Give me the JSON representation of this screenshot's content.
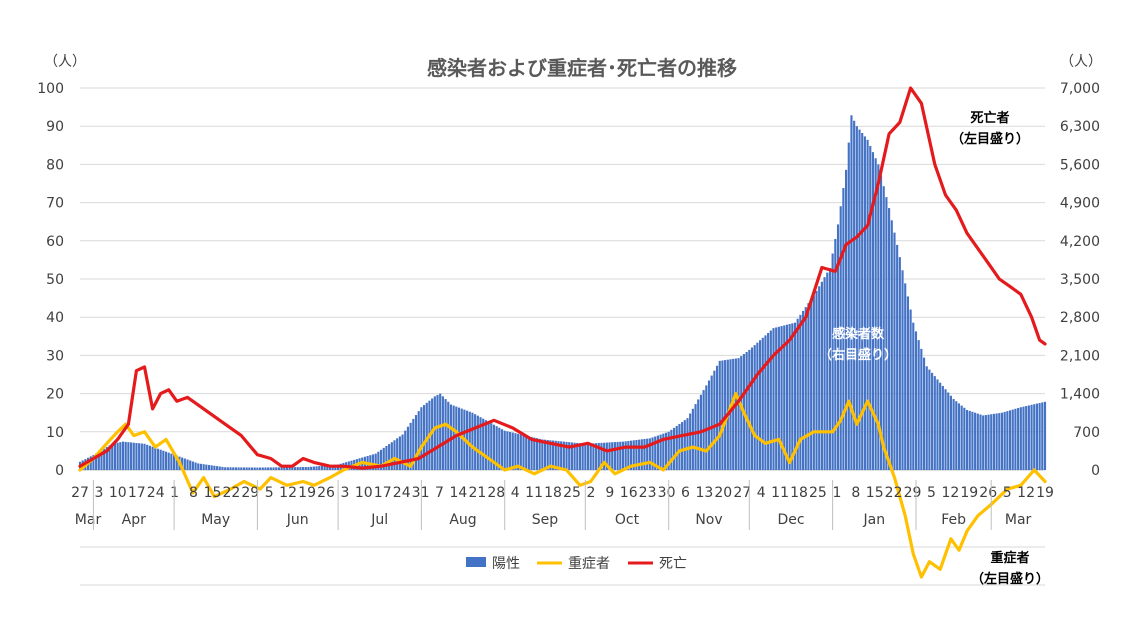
{
  "chart_data": {
    "type": "bar",
    "title": "感染者および重症者･死亡者の推移",
    "left_axis": {
      "unit": "（人）",
      "ticks": [
        "0",
        "10",
        "20",
        "30",
        "40",
        "50",
        "60",
        "70",
        "80",
        "90",
        "100"
      ],
      "ylim": [
        -30,
        100
      ]
    },
    "right_axis": {
      "unit": "（人）",
      "ticks": [
        "0",
        "700",
        "1,400",
        "2,100",
        "2,800",
        "3,500",
        "4,200",
        "4,900",
        "5,600",
        "6,300",
        "7,000"
      ],
      "ylim": [
        -2100,
        7000
      ]
    },
    "x_day_labels": [
      "27",
      "3",
      "10",
      "17",
      "24",
      "1",
      "8",
      "15",
      "22",
      "29",
      "5",
      "12",
      "19",
      "26",
      "3",
      "10",
      "17",
      "24",
      "31",
      "7",
      "14",
      "21",
      "28",
      "4",
      "11",
      "18",
      "25",
      "2",
      "9",
      "16",
      "23",
      "30",
      "6",
      "13",
      "20",
      "27",
      "4",
      "11",
      "18",
      "25",
      "1",
      "8",
      "15",
      "22",
      "29",
      "5",
      "12",
      "19",
      "26",
      "5",
      "12",
      "19"
    ],
    "x_month_labels": [
      "Mar",
      "Apr",
      "May",
      "Jun",
      "Jul",
      "Aug",
      "Sep",
      "Oct",
      "Nov",
      "Dec",
      "Jan",
      "Feb",
      "Mar"
    ],
    "x_start": "2020-03-27",
    "x_end": "2021-03-21",
    "legend": [
      "陽性",
      "重症者",
      "死亡"
    ],
    "annotations": {
      "deaths": [
        "死亡者",
        "（左目盛り）"
      ],
      "cases": [
        "感染者数",
        "（右目盛り）"
      ],
      "severe": [
        "重症者",
        "（左目盛り）"
      ]
    },
    "series": [
      {
        "name": "陽性",
        "axis": "right",
        "render": "bar",
        "color": "#4472C4",
        "keyframes": [
          [
            "2020-03-27",
            150
          ],
          [
            "2020-04-02",
            300
          ],
          [
            "2020-04-08",
            480
          ],
          [
            "2020-04-12",
            520
          ],
          [
            "2020-04-20",
            480
          ],
          [
            "2020-04-30",
            300
          ],
          [
            "2020-05-10",
            120
          ],
          [
            "2020-05-20",
            50
          ],
          [
            "2020-06-01",
            45
          ],
          [
            "2020-06-20",
            55
          ],
          [
            "2020-07-01",
            100
          ],
          [
            "2020-07-15",
            300
          ],
          [
            "2020-07-25",
            650
          ],
          [
            "2020-08-01",
            1150
          ],
          [
            "2020-08-06",
            1350
          ],
          [
            "2020-08-08",
            1400
          ],
          [
            "2020-08-12",
            1200
          ],
          [
            "2020-08-20",
            1050
          ],
          [
            "2020-09-01",
            720
          ],
          [
            "2020-09-15",
            560
          ],
          [
            "2020-10-01",
            480
          ],
          [
            "2020-10-15",
            520
          ],
          [
            "2020-10-25",
            580
          ],
          [
            "2020-11-01",
            700
          ],
          [
            "2020-11-08",
            950
          ],
          [
            "2020-11-15",
            1550
          ],
          [
            "2020-11-20",
            2000
          ],
          [
            "2020-11-27",
            2050
          ],
          [
            "2020-12-01",
            2200
          ],
          [
            "2020-12-10",
            2600
          ],
          [
            "2020-12-18",
            2700
          ],
          [
            "2020-12-25",
            3200
          ],
          [
            "2020-12-31",
            3700
          ],
          [
            "2021-01-03",
            4500
          ],
          [
            "2021-01-06",
            5500
          ],
          [
            "2021-01-08",
            6500
          ],
          [
            "2021-01-10",
            6300
          ],
          [
            "2021-01-14",
            6050
          ],
          [
            "2021-01-18",
            5600
          ],
          [
            "2021-01-22",
            4800
          ],
          [
            "2021-01-26",
            3900
          ],
          [
            "2021-01-31",
            2700
          ],
          [
            "2021-02-05",
            1900
          ],
          [
            "2021-02-10",
            1600
          ],
          [
            "2021-02-15",
            1300
          ],
          [
            "2021-02-20",
            1100
          ],
          [
            "2021-02-26",
            1000
          ],
          [
            "2021-03-05",
            1050
          ],
          [
            "2021-03-12",
            1150
          ],
          [
            "2021-03-21",
            1250
          ]
        ]
      },
      {
        "name": "重症者",
        "axis": "left",
        "render": "line",
        "color": "#FFC000",
        "keyframes": [
          [
            "2020-03-27",
            0
          ],
          [
            "2020-04-01",
            3
          ],
          [
            "2020-04-06",
            7
          ],
          [
            "2020-04-10",
            10
          ],
          [
            "2020-04-13",
            12
          ],
          [
            "2020-04-16",
            9
          ],
          [
            "2020-04-20",
            10
          ],
          [
            "2020-04-24",
            6
          ],
          [
            "2020-04-28",
            8
          ],
          [
            "2020-05-03",
            2
          ],
          [
            "2020-05-08",
            -6
          ],
          [
            "2020-05-12",
            -2
          ],
          [
            "2020-05-16",
            -7
          ],
          [
            "2020-05-22",
            -5
          ],
          [
            "2020-05-27",
            -3
          ],
          [
            "2020-06-02",
            -5
          ],
          [
            "2020-06-06",
            -2
          ],
          [
            "2020-06-12",
            -4
          ],
          [
            "2020-06-18",
            -3
          ],
          [
            "2020-06-22",
            -4
          ],
          [
            "2020-06-28",
            -2
          ],
          [
            "2020-07-03",
            0
          ],
          [
            "2020-07-10",
            2
          ],
          [
            "2020-07-17",
            1
          ],
          [
            "2020-07-22",
            3
          ],
          [
            "2020-07-28",
            1
          ],
          [
            "2020-08-01",
            6
          ],
          [
            "2020-08-06",
            11
          ],
          [
            "2020-08-10",
            12
          ],
          [
            "2020-08-14",
            10
          ],
          [
            "2020-08-20",
            6
          ],
          [
            "2020-08-26",
            3
          ],
          [
            "2020-09-01",
            0
          ],
          [
            "2020-09-06",
            1
          ],
          [
            "2020-09-12",
            -1
          ],
          [
            "2020-09-18",
            1
          ],
          [
            "2020-09-24",
            0
          ],
          [
            "2020-09-29",
            -4
          ],
          [
            "2020-10-03",
            -3
          ],
          [
            "2020-10-08",
            2
          ],
          [
            "2020-10-12",
            -1
          ],
          [
            "2020-10-18",
            1
          ],
          [
            "2020-10-25",
            2
          ],
          [
            "2020-10-30",
            0
          ],
          [
            "2020-11-05",
            5
          ],
          [
            "2020-11-10",
            6
          ],
          [
            "2020-11-15",
            5
          ],
          [
            "2020-11-20",
            9
          ],
          [
            "2020-11-26",
            20
          ],
          [
            "2020-11-29",
            15
          ],
          [
            "2020-12-03",
            9
          ],
          [
            "2020-12-07",
            7
          ],
          [
            "2020-12-12",
            8
          ],
          [
            "2020-12-16",
            2
          ],
          [
            "2020-12-20",
            8
          ],
          [
            "2020-12-25",
            10
          ],
          [
            "2021-01-01",
            10
          ],
          [
            "2021-01-04",
            13
          ],
          [
            "2021-01-07",
            18
          ],
          [
            "2021-01-10",
            12
          ],
          [
            "2021-01-14",
            18
          ],
          [
            "2021-01-18",
            12
          ],
          [
            "2021-01-20",
            6
          ],
          [
            "2021-01-24",
            -2
          ],
          [
            "2021-01-28",
            -12
          ],
          [
            "2021-01-31",
            -22
          ],
          [
            "2021-02-03",
            -28
          ],
          [
            "2021-02-06",
            -24
          ],
          [
            "2021-02-10",
            -26
          ],
          [
            "2021-02-14",
            -18
          ],
          [
            "2021-02-17",
            -21
          ],
          [
            "2021-02-20",
            -16
          ],
          [
            "2021-02-24",
            -12
          ],
          [
            "2021-03-01",
            -9
          ],
          [
            "2021-03-07",
            -5
          ],
          [
            "2021-03-12",
            -4
          ],
          [
            "2021-03-17",
            0
          ],
          [
            "2021-03-21",
            -3
          ]
        ]
      },
      {
        "name": "死亡",
        "axis": "left",
        "render": "line",
        "color": "#E41A1C",
        "keyframes": [
          [
            "2020-03-27",
            1
          ],
          [
            "2020-04-01",
            3
          ],
          [
            "2020-04-06",
            5
          ],
          [
            "2020-04-10",
            8
          ],
          [
            "2020-04-14",
            12
          ],
          [
            "2020-04-17",
            26
          ],
          [
            "2020-04-20",
            27
          ],
          [
            "2020-04-23",
            16
          ],
          [
            "2020-04-26",
            20
          ],
          [
            "2020-04-29",
            21
          ],
          [
            "2020-05-02",
            18
          ],
          [
            "2020-05-06",
            19
          ],
          [
            "2020-05-10",
            17
          ],
          [
            "2020-05-14",
            15
          ],
          [
            "2020-05-20",
            12
          ],
          [
            "2020-05-26",
            9
          ],
          [
            "2020-06-01",
            4
          ],
          [
            "2020-06-06",
            3
          ],
          [
            "2020-06-10",
            1
          ],
          [
            "2020-06-14",
            1
          ],
          [
            "2020-06-18",
            3
          ],
          [
            "2020-06-22",
            2
          ],
          [
            "2020-06-28",
            1
          ],
          [
            "2020-07-03",
            1
          ],
          [
            "2020-07-10",
            0.5
          ],
          [
            "2020-07-17",
            1
          ],
          [
            "2020-07-24",
            2
          ],
          [
            "2020-07-31",
            3
          ],
          [
            "2020-08-07",
            6
          ],
          [
            "2020-08-14",
            9
          ],
          [
            "2020-08-21",
            11
          ],
          [
            "2020-08-28",
            13
          ],
          [
            "2020-09-04",
            11
          ],
          [
            "2020-09-11",
            8
          ],
          [
            "2020-09-18",
            7
          ],
          [
            "2020-09-25",
            6
          ],
          [
            "2020-10-02",
            7
          ],
          [
            "2020-10-09",
            5
          ],
          [
            "2020-10-16",
            6
          ],
          [
            "2020-10-23",
            6
          ],
          [
            "2020-10-30",
            8
          ],
          [
            "2020-11-06",
            9
          ],
          [
            "2020-11-13",
            10
          ],
          [
            "2020-11-20",
            12
          ],
          [
            "2020-11-27",
            18
          ],
          [
            "2020-12-04",
            25
          ],
          [
            "2020-12-10",
            30
          ],
          [
            "2020-12-16",
            34
          ],
          [
            "2020-12-22",
            40
          ],
          [
            "2020-12-28",
            53
          ],
          [
            "2021-01-02",
            52
          ],
          [
            "2021-01-06",
            59
          ],
          [
            "2021-01-10",
            61
          ],
          [
            "2021-01-14",
            64
          ],
          [
            "2021-01-18",
            75
          ],
          [
            "2021-01-22",
            88
          ],
          [
            "2021-01-26",
            91
          ],
          [
            "2021-01-30",
            100
          ],
          [
            "2021-02-03",
            96
          ],
          [
            "2021-02-08",
            80
          ],
          [
            "2021-02-12",
            72
          ],
          [
            "2021-02-16",
            68
          ],
          [
            "2021-02-20",
            62
          ],
          [
            "2021-02-24",
            58
          ],
          [
            "2021-02-28",
            54
          ],
          [
            "2021-03-04",
            50
          ],
          [
            "2021-03-08",
            48
          ],
          [
            "2021-03-12",
            46
          ],
          [
            "2021-03-16",
            40
          ],
          [
            "2021-03-19",
            34
          ],
          [
            "2021-03-21",
            33
          ]
        ]
      }
    ]
  }
}
